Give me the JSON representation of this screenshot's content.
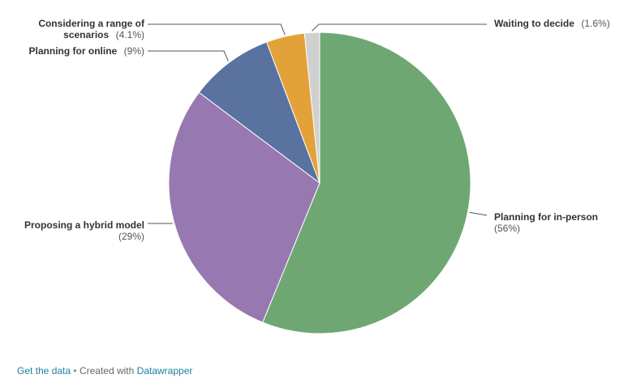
{
  "chart_data": {
    "type": "pie",
    "slices": [
      {
        "name": "Planning for in-person",
        "value": 56,
        "label": "(56%)",
        "color": "#6fa772"
      },
      {
        "name": "Proposing a hybrid model",
        "value": 29,
        "label": "(29%)",
        "color": "#9878b0"
      },
      {
        "name": "Planning for online",
        "value": 9,
        "label": "(9%)",
        "color": "#5a72a0"
      },
      {
        "name": "Considering a range of scenarios",
        "value": 4.1,
        "label": "(4.1%)",
        "color": "#e3a239"
      },
      {
        "name": "Waiting to decide",
        "value": 1.6,
        "label": "(1.6%)",
        "color": "#d0d0d0"
      }
    ],
    "start": "12 o'clock",
    "direction": "clockwise"
  },
  "footer": {
    "get_data": "Get the data",
    "separator": "•",
    "created_with": "Created with",
    "tool": "Datawrapper"
  }
}
